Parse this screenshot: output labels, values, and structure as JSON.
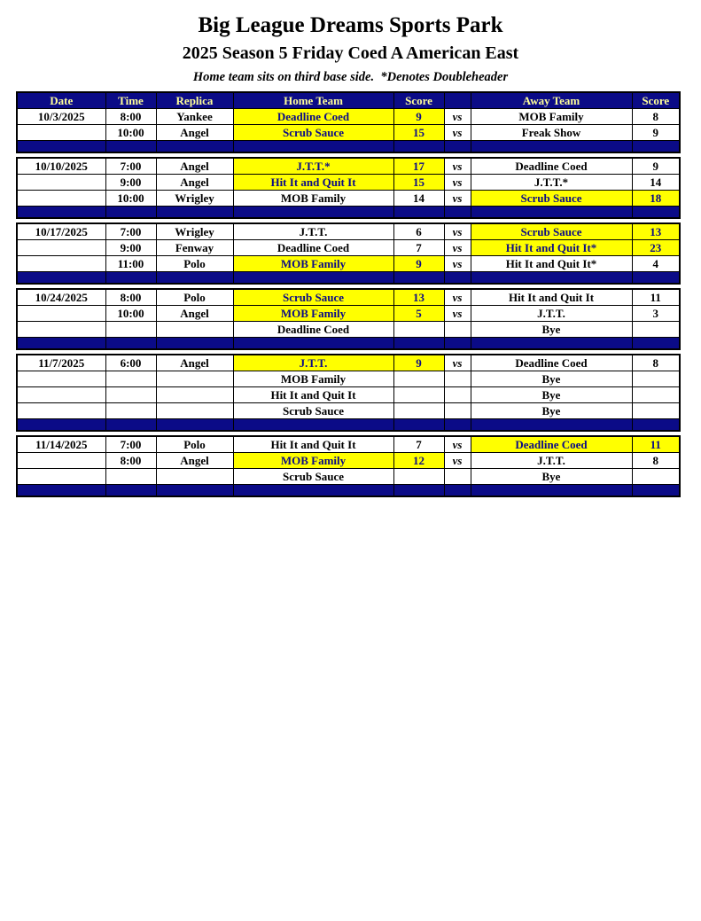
{
  "page": {
    "title": "Big League Dreams Sports Park",
    "subtitle": "2025 Season 5 Friday Coed A American East",
    "note": "Home team sits on third base side.  *Denotes Doubleheader"
  },
  "colors": {
    "navy": "#0B0B87",
    "highlight_yellow": "#FFFF00",
    "header_text_yellow": "#FFFF99"
  },
  "table": {
    "headers": {
      "date": "Date",
      "time": "Time",
      "replica": "Replica",
      "home": "Home Team",
      "home_score": "Score",
      "vs": "",
      "away": "Away Team",
      "away_score": "Score"
    },
    "groups": [
      {
        "rows": [
          {
            "date": "10/3/2025",
            "time": "8:00",
            "replica": "Yankee",
            "home": "Deadline Coed",
            "home_score": "9",
            "vs": "vs",
            "away": "MOB Family",
            "away_score": "8",
            "home_win": true,
            "away_win": false
          },
          {
            "date": "",
            "time": "10:00",
            "replica": "Angel",
            "home": "Scrub Sauce",
            "home_score": "15",
            "vs": "vs",
            "away": "Freak Show",
            "away_score": "9",
            "home_win": true,
            "away_win": false
          }
        ]
      },
      {
        "rows": [
          {
            "date": "10/10/2025",
            "time": "7:00",
            "replica": "Angel",
            "home": "J.T.T.*",
            "home_score": "17",
            "vs": "vs",
            "away": "Deadline Coed",
            "away_score": "9",
            "home_win": true,
            "away_win": false
          },
          {
            "date": "",
            "time": "9:00",
            "replica": "Angel",
            "home": "Hit It and Quit It",
            "home_score": "15",
            "vs": "vs",
            "away": "J.T.T.*",
            "away_score": "14",
            "home_win": true,
            "away_win": false
          },
          {
            "date": "",
            "time": "10:00",
            "replica": "Wrigley",
            "home": "MOB Family",
            "home_score": "14",
            "vs": "vs",
            "away": "Scrub Sauce",
            "away_score": "18",
            "home_win": false,
            "away_win": true
          }
        ]
      },
      {
        "rows": [
          {
            "date": "10/17/2025",
            "time": "7:00",
            "replica": "Wrigley",
            "home": "J.T.T.",
            "home_score": "6",
            "vs": "vs",
            "away": "Scrub Sauce",
            "away_score": "13",
            "home_win": false,
            "away_win": true
          },
          {
            "date": "",
            "time": "9:00",
            "replica": "Fenway",
            "home": "Deadline Coed",
            "home_score": "7",
            "vs": "vs",
            "away": "Hit It and Quit It*",
            "away_score": "23",
            "home_win": false,
            "away_win": true
          },
          {
            "date": "",
            "time": "11:00",
            "replica": "Polo",
            "home": "MOB Family",
            "home_score": "9",
            "vs": "vs",
            "away": "Hit It and Quit It*",
            "away_score": "4",
            "home_win": true,
            "away_win": false
          }
        ]
      },
      {
        "rows": [
          {
            "date": "10/24/2025",
            "time": "8:00",
            "replica": "Polo",
            "home": "Scrub Sauce",
            "home_score": "13",
            "vs": "vs",
            "away": "Hit It and Quit It",
            "away_score": "11",
            "home_win": true,
            "away_win": false
          },
          {
            "date": "",
            "time": "10:00",
            "replica": "Angel",
            "home": "MOB Family",
            "home_score": "5",
            "vs": "vs",
            "away": "J.T.T.",
            "away_score": "3",
            "home_win": true,
            "away_win": false
          },
          {
            "date": "",
            "time": "",
            "replica": "",
            "home": "Deadline Coed",
            "home_score": "",
            "vs": "",
            "away": "Bye",
            "away_score": "",
            "home_win": false,
            "away_win": false
          }
        ]
      },
      {
        "rows": [
          {
            "date": "11/7/2025",
            "time": "6:00",
            "replica": "Angel",
            "home": "J.T.T.",
            "home_score": "9",
            "vs": "vs",
            "away": "Deadline Coed",
            "away_score": "8",
            "home_win": true,
            "away_win": false
          },
          {
            "date": "",
            "time": "",
            "replica": "",
            "home": "MOB Family",
            "home_score": "",
            "vs": "",
            "away": "Bye",
            "away_score": "",
            "home_win": false,
            "away_win": false
          },
          {
            "date": "",
            "time": "",
            "replica": "",
            "home": "Hit It and Quit It",
            "home_score": "",
            "vs": "",
            "away": "Bye",
            "away_score": "",
            "home_win": false,
            "away_win": false
          },
          {
            "date": "",
            "time": "",
            "replica": "",
            "home": "Scrub Sauce",
            "home_score": "",
            "vs": "",
            "away": "Bye",
            "away_score": "",
            "home_win": false,
            "away_win": false
          }
        ]
      },
      {
        "rows": [
          {
            "date": "11/14/2025",
            "time": "7:00",
            "replica": "Polo",
            "home": "Hit It and Quit It",
            "home_score": "7",
            "vs": "vs",
            "away": "Deadline Coed",
            "away_score": "11",
            "home_win": false,
            "away_win": true
          },
          {
            "date": "",
            "time": "8:00",
            "replica": "Angel",
            "home": "MOB Family",
            "home_score": "12",
            "vs": "vs",
            "away": "J.T.T.",
            "away_score": "8",
            "home_win": true,
            "away_win": false
          },
          {
            "date": "",
            "time": "",
            "replica": "",
            "home": "Scrub Sauce",
            "home_score": "",
            "vs": "",
            "away": "Bye",
            "away_score": "",
            "home_win": false,
            "away_win": false
          }
        ]
      }
    ]
  }
}
